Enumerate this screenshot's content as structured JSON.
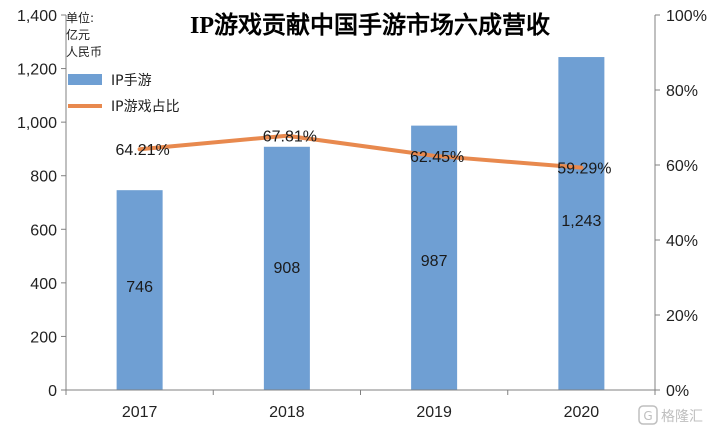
{
  "chart_data": {
    "type": "bar+line",
    "title": "IP游戏贡献中国手游市场六成营收",
    "unit_label_lines": [
      "单位:",
      "亿元",
      "人民币"
    ],
    "categories": [
      "2017",
      "2018",
      "2019",
      "2020"
    ],
    "series": [
      {
        "name": "IP手游",
        "type": "bar",
        "axis": "left",
        "values": [
          746,
          908,
          987,
          1243
        ],
        "labels": [
          "746",
          "908",
          "987",
          "1,243"
        ]
      },
      {
        "name": "IP游戏占比",
        "type": "line",
        "axis": "right",
        "values": [
          64.21,
          67.81,
          62.45,
          59.29
        ],
        "labels": [
          "64.21%",
          "67.81%",
          "62.45%",
          "59.29%"
        ]
      }
    ],
    "left_axis": {
      "min": 0,
      "max": 1400,
      "ticks": [
        "0",
        "200",
        "400",
        "600",
        "800",
        "1,000",
        "1,200",
        "1,400"
      ]
    },
    "right_axis": {
      "min": 0,
      "max": 100,
      "ticks": [
        "0%",
        "20%",
        "40%",
        "60%",
        "80%",
        "100%"
      ]
    },
    "grid": false,
    "legend_position": "top-left",
    "colors": {
      "bar": "#6f9fd3",
      "line": "#e8894e",
      "axis": "#808080"
    }
  },
  "watermark": {
    "glyph": "G",
    "text": "格隆汇"
  }
}
